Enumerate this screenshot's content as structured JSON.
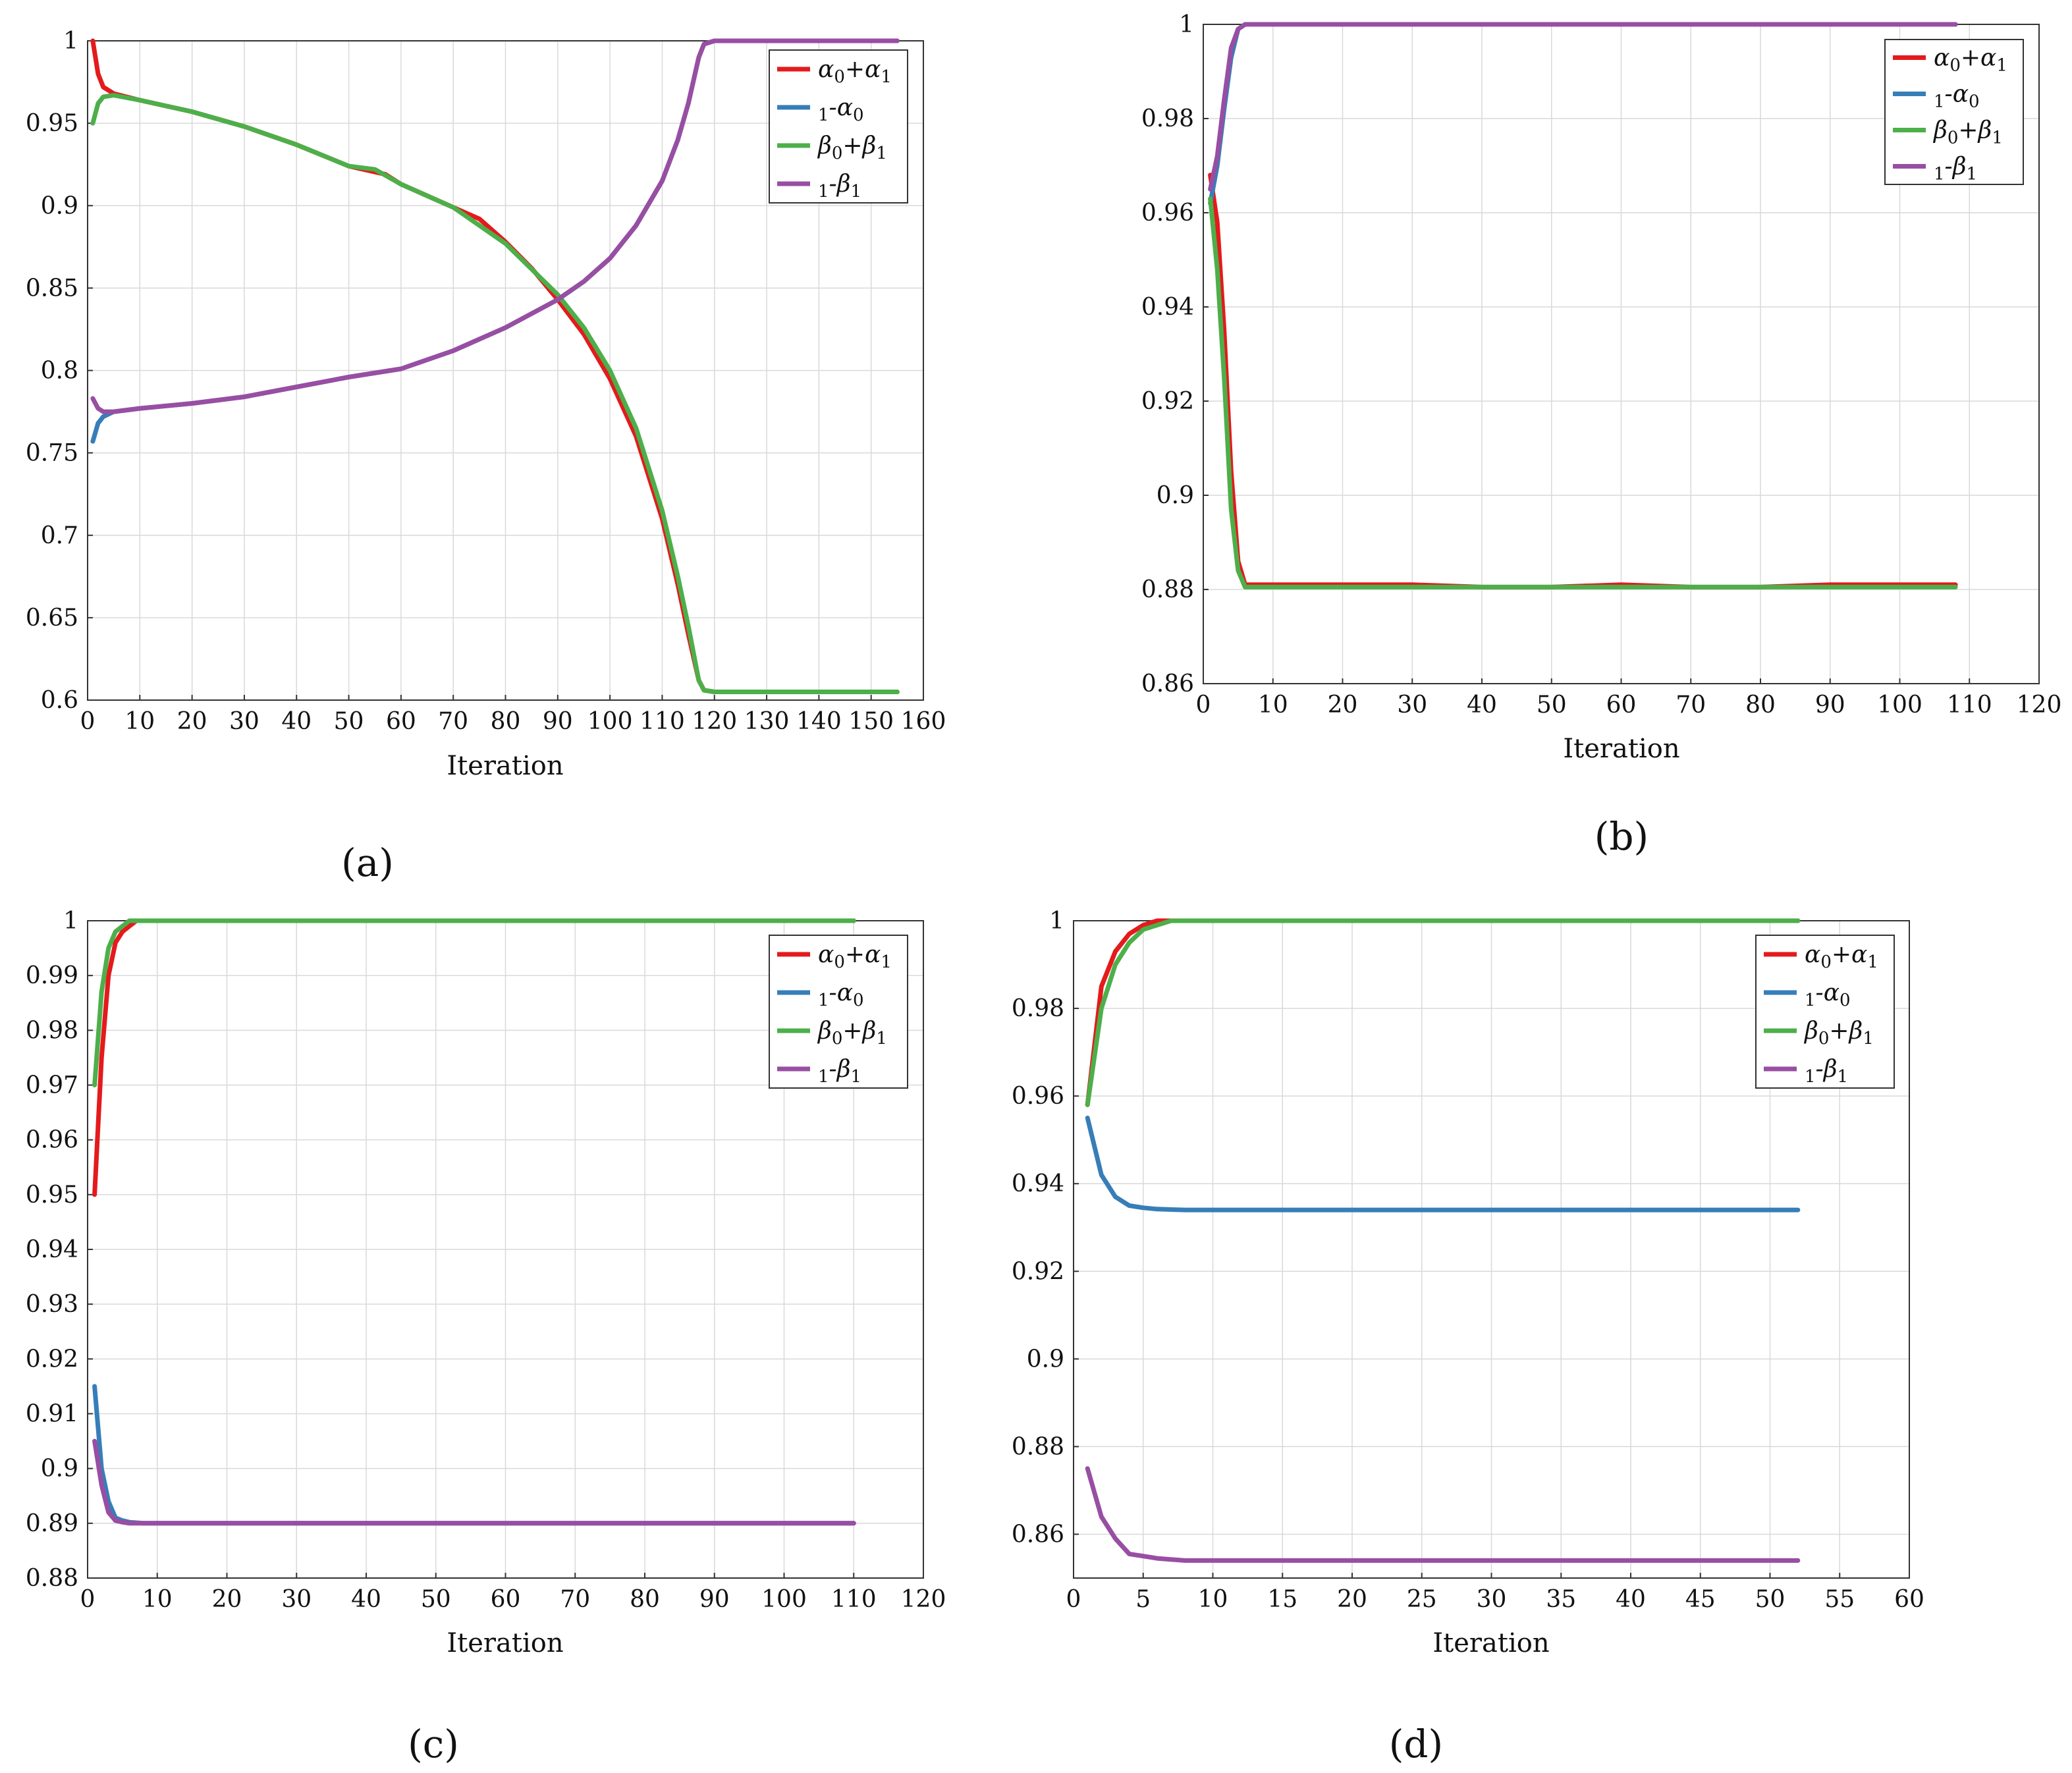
{
  "figure": {
    "colors": {
      "red": "#e41a1c",
      "blue": "#377eb8",
      "green": "#4daf4a",
      "purple": "#984ea3"
    },
    "legend_labels": [
      "α0+α1",
      "1-α0",
      "β0+β1",
      "1-β1"
    ]
  },
  "chart_data": [
    {
      "id": "a",
      "type": "line",
      "caption": "(a)",
      "title": "",
      "xlabel": "Iteration",
      "ylabel": "",
      "xlim": [
        0,
        160
      ],
      "ylim": [
        0.6,
        1
      ],
      "grid": true,
      "legend_position": "top-right",
      "xticks": [
        0,
        10,
        20,
        30,
        40,
        50,
        60,
        70,
        80,
        90,
        100,
        110,
        120,
        130,
        140,
        150,
        160
      ],
      "yticks": [
        0.6,
        0.65,
        0.7,
        0.75,
        0.8,
        0.85,
        0.9,
        0.95,
        1
      ],
      "series": [
        {
          "name": "α0+α1",
          "color": "#e41a1c",
          "x": [
            1,
            2,
            3,
            5,
            10,
            20,
            30,
            40,
            50,
            57,
            60,
            70,
            75,
            80,
            85,
            90,
            95,
            100,
            105,
            110,
            113,
            115,
            117,
            118,
            120,
            130,
            140,
            150,
            155
          ],
          "y": [
            1.0,
            0.98,
            0.972,
            0.968,
            0.964,
            0.957,
            0.948,
            0.937,
            0.924,
            0.919,
            0.913,
            0.899,
            0.892,
            0.878,
            0.862,
            0.843,
            0.822,
            0.795,
            0.76,
            0.71,
            0.67,
            0.64,
            0.612,
            0.606,
            0.605,
            0.605,
            0.605,
            0.605,
            0.605
          ]
        },
        {
          "name": "1-α0",
          "color": "#377eb8",
          "x": [
            1,
            2,
            3,
            5,
            10,
            20,
            30,
            40,
            50,
            60,
            70,
            80,
            90,
            95,
            100,
            105,
            110,
            113,
            115,
            117,
            118,
            120,
            130,
            140,
            150,
            155
          ],
          "y": [
            0.757,
            0.768,
            0.772,
            0.775,
            0.777,
            0.78,
            0.784,
            0.79,
            0.796,
            0.801,
            0.812,
            0.826,
            0.843,
            0.854,
            0.868,
            0.888,
            0.915,
            0.94,
            0.962,
            0.99,
            0.998,
            1.0,
            1.0,
            1.0,
            1.0,
            1.0
          ]
        },
        {
          "name": "β0+β1",
          "color": "#4daf4a",
          "x": [
            1,
            2,
            3,
            5,
            10,
            20,
            30,
            40,
            50,
            55,
            60,
            70,
            80,
            90,
            95,
            100,
            105,
            110,
            113,
            115,
            117,
            118,
            120,
            130,
            140,
            150,
            155
          ],
          "y": [
            0.95,
            0.962,
            0.966,
            0.967,
            0.964,
            0.957,
            0.948,
            0.937,
            0.924,
            0.922,
            0.913,
            0.899,
            0.877,
            0.846,
            0.826,
            0.8,
            0.765,
            0.715,
            0.675,
            0.645,
            0.612,
            0.606,
            0.605,
            0.605,
            0.605,
            0.605,
            0.605
          ]
        },
        {
          "name": "1-β1",
          "color": "#984ea3",
          "x": [
            1,
            2,
            3,
            5,
            10,
            20,
            30,
            40,
            50,
            60,
            70,
            80,
            90,
            95,
            100,
            105,
            110,
            113,
            115,
            117,
            118,
            120,
            130,
            140,
            150,
            155
          ],
          "y": [
            0.783,
            0.777,
            0.775,
            0.775,
            0.777,
            0.78,
            0.784,
            0.79,
            0.796,
            0.801,
            0.812,
            0.826,
            0.843,
            0.854,
            0.868,
            0.888,
            0.915,
            0.94,
            0.962,
            0.99,
            0.998,
            1.0,
            1.0,
            1.0,
            1.0,
            1.0
          ]
        }
      ]
    },
    {
      "id": "b",
      "type": "line",
      "caption": "(b)",
      "title": "",
      "xlabel": "Iteration",
      "ylabel": "",
      "xlim": [
        0,
        120
      ],
      "ylim": [
        0.86,
        1
      ],
      "grid": true,
      "legend_position": "top-right",
      "xticks": [
        0,
        10,
        20,
        30,
        40,
        50,
        60,
        70,
        80,
        90,
        100,
        110,
        120
      ],
      "yticks": [
        0.86,
        0.88,
        0.9,
        0.92,
        0.94,
        0.96,
        0.98,
        1
      ],
      "series": [
        {
          "name": "α0+α1",
          "color": "#e41a1c",
          "x": [
            1,
            2,
            3,
            4,
            5,
            6,
            7,
            10,
            20,
            30,
            40,
            50,
            60,
            70,
            80,
            90,
            100,
            108
          ],
          "y": [
            0.968,
            0.958,
            0.935,
            0.905,
            0.886,
            0.881,
            0.881,
            0.881,
            0.881,
            0.881,
            0.8805,
            0.8805,
            0.881,
            0.8805,
            0.8805,
            0.881,
            0.881,
            0.881
          ]
        },
        {
          "name": "1-α0",
          "color": "#377eb8",
          "x": [
            1,
            2,
            3,
            4,
            5,
            6,
            7,
            10,
            20,
            30,
            40,
            50,
            60,
            70,
            80,
            90,
            100,
            108
          ],
          "y": [
            0.962,
            0.97,
            0.982,
            0.993,
            0.999,
            1.0,
            1.0,
            1.0,
            1.0,
            1.0,
            1.0,
            1.0,
            1.0,
            1.0,
            1.0,
            1.0,
            1.0,
            1.0
          ]
        },
        {
          "name": "β0+β1",
          "color": "#4daf4a",
          "x": [
            1,
            2,
            3,
            4,
            5,
            6,
            7,
            10,
            20,
            30,
            40,
            50,
            60,
            70,
            80,
            90,
            100,
            108
          ],
          "y": [
            0.963,
            0.948,
            0.925,
            0.897,
            0.884,
            0.8805,
            0.8805,
            0.8805,
            0.8805,
            0.8805,
            0.8805,
            0.8805,
            0.8805,
            0.8805,
            0.8805,
            0.8805,
            0.8805,
            0.8805
          ]
        },
        {
          "name": "1-β1",
          "color": "#984ea3",
          "x": [
            1,
            2,
            3,
            4,
            5,
            6,
            7,
            10,
            20,
            30,
            40,
            50,
            60,
            70,
            80,
            90,
            100,
            108
          ],
          "y": [
            0.965,
            0.972,
            0.984,
            0.995,
            0.999,
            1.0,
            1.0,
            1.0,
            1.0,
            1.0,
            1.0,
            1.0,
            1.0,
            1.0,
            1.0,
            1.0,
            1.0,
            1.0
          ]
        }
      ]
    },
    {
      "id": "c",
      "type": "line",
      "caption": "(c)",
      "title": "",
      "xlabel": "Iteration",
      "ylabel": "",
      "xlim": [
        0,
        120
      ],
      "ylim": [
        0.88,
        1
      ],
      "grid": true,
      "legend_position": "top-right",
      "xticks": [
        0,
        10,
        20,
        30,
        40,
        50,
        60,
        70,
        80,
        90,
        100,
        110,
        120
      ],
      "yticks": [
        0.88,
        0.89,
        0.9,
        0.91,
        0.92,
        0.93,
        0.94,
        0.95,
        0.96,
        0.97,
        0.98,
        0.99,
        1
      ],
      "series": [
        {
          "name": "α0+α1",
          "color": "#e41a1c",
          "x": [
            1,
            2,
            3,
            4,
            5,
            6,
            7,
            8,
            10,
            20,
            40,
            60,
            80,
            100,
            110
          ],
          "y": [
            0.95,
            0.975,
            0.99,
            0.996,
            0.998,
            0.999,
            1.0,
            1.0,
            1.0,
            1.0,
            1.0,
            1.0,
            1.0,
            1.0,
            1.0
          ]
        },
        {
          "name": "1-α0",
          "color": "#377eb8",
          "x": [
            1,
            2,
            3,
            4,
            5,
            6,
            8,
            10,
            20,
            30,
            40,
            50,
            60,
            70,
            80,
            90,
            100,
            110
          ],
          "y": [
            0.915,
            0.9,
            0.894,
            0.891,
            0.8905,
            0.8902,
            0.89,
            0.89,
            0.89,
            0.89,
            0.89,
            0.89,
            0.89,
            0.89,
            0.89,
            0.89,
            0.89,
            0.89
          ]
        },
        {
          "name": "β0+β1",
          "color": "#4daf4a",
          "x": [
            1,
            2,
            3,
            4,
            5,
            6,
            7,
            8,
            10,
            20,
            40,
            60,
            80,
            100,
            110
          ],
          "y": [
            0.97,
            0.987,
            0.995,
            0.998,
            0.999,
            1.0,
            1.0,
            1.0,
            1.0,
            1.0,
            1.0,
            1.0,
            1.0,
            1.0,
            1.0
          ]
        },
        {
          "name": "1-β1",
          "color": "#984ea3",
          "x": [
            1,
            2,
            3,
            4,
            5,
            6,
            8,
            10,
            20,
            30,
            40,
            50,
            60,
            70,
            80,
            90,
            100,
            110
          ],
          "y": [
            0.905,
            0.897,
            0.892,
            0.8905,
            0.8902,
            0.89,
            0.89,
            0.89,
            0.89,
            0.89,
            0.89,
            0.89,
            0.89,
            0.89,
            0.89,
            0.89,
            0.89,
            0.89
          ]
        }
      ]
    },
    {
      "id": "d",
      "type": "line",
      "caption": "(d)",
      "title": "",
      "xlabel": "Iteration",
      "ylabel": "",
      "xlim": [
        0,
        60
      ],
      "ylim": [
        0.85,
        1
      ],
      "grid": true,
      "legend_position": "top-right",
      "xticks": [
        0,
        5,
        10,
        15,
        20,
        25,
        30,
        35,
        40,
        45,
        50,
        55,
        60
      ],
      "yticks": [
        0.86,
        0.88,
        0.9,
        0.92,
        0.94,
        0.96,
        0.98,
        1
      ],
      "series": [
        {
          "name": "α0+α1",
          "color": "#e41a1c",
          "x": [
            1,
            2,
            3,
            4,
            5,
            6,
            7,
            8,
            10,
            20,
            30,
            40,
            50,
            52
          ],
          "y": [
            0.958,
            0.985,
            0.993,
            0.997,
            0.999,
            1.0,
            1.0,
            1.0,
            1.0,
            1.0,
            1.0,
            1.0,
            1.0,
            1.0
          ]
        },
        {
          "name": "1-α0",
          "color": "#377eb8",
          "x": [
            1,
            2,
            3,
            4,
            5,
            6,
            8,
            10,
            20,
            30,
            40,
            50,
            52
          ],
          "y": [
            0.955,
            0.942,
            0.937,
            0.935,
            0.9345,
            0.9342,
            0.934,
            0.934,
            0.934,
            0.934,
            0.934,
            0.934,
            0.934
          ]
        },
        {
          "name": "β0+β1",
          "color": "#4daf4a",
          "x": [
            1,
            2,
            3,
            4,
            5,
            6,
            7,
            8,
            10,
            20,
            30,
            40,
            50,
            52
          ],
          "y": [
            0.958,
            0.98,
            0.99,
            0.995,
            0.998,
            0.999,
            1.0,
            1.0,
            1.0,
            1.0,
            1.0,
            1.0,
            1.0,
            1.0
          ]
        },
        {
          "name": "1-β1",
          "color": "#984ea3",
          "x": [
            1,
            2,
            3,
            4,
            5,
            6,
            8,
            10,
            15,
            20,
            25,
            30,
            35,
            40,
            45,
            50,
            52
          ],
          "y": [
            0.875,
            0.864,
            0.859,
            0.8555,
            0.855,
            0.8545,
            0.854,
            0.854,
            0.854,
            0.854,
            0.854,
            0.854,
            0.854,
            0.854,
            0.854,
            0.854,
            0.854
          ]
        }
      ]
    }
  ]
}
